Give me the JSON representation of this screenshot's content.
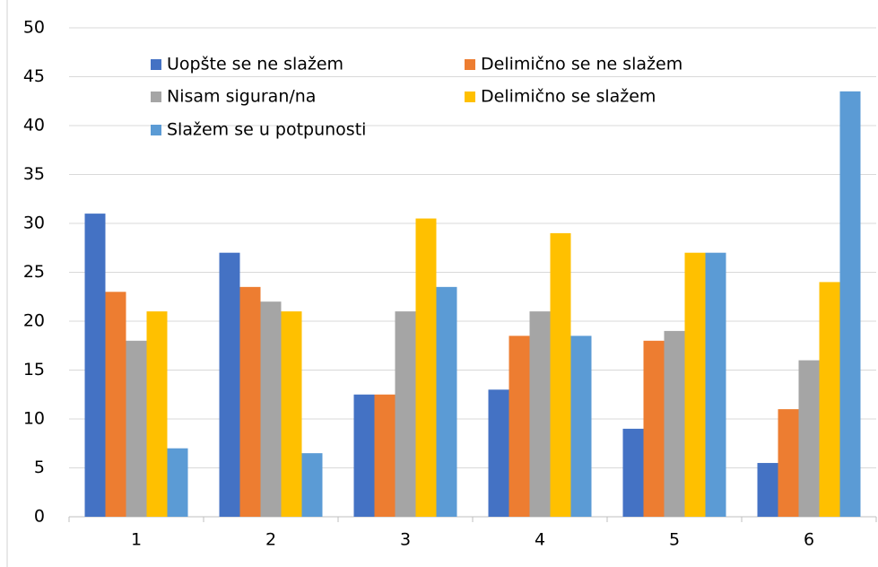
{
  "chart_data": {
    "type": "bar",
    "categories": [
      "1",
      "2",
      "3",
      "4",
      "5",
      "6"
    ],
    "series": [
      {
        "name": "Uopšte se ne slažem",
        "color": "#4472c4",
        "values": [
          31,
          27,
          12.5,
          13,
          9,
          5.5
        ]
      },
      {
        "name": "Delimično se ne slažem",
        "color": "#ed7d31",
        "values": [
          23,
          23.5,
          12.5,
          18.5,
          18,
          11
        ]
      },
      {
        "name": "Nisam siguran/na",
        "color": "#a5a5a5",
        "values": [
          18,
          22,
          21,
          21,
          19,
          16
        ]
      },
      {
        "name": "Delimično se slažem",
        "color": "#ffc000",
        "values": [
          21,
          21,
          30.5,
          29,
          27,
          24
        ]
      },
      {
        "name": "Slažem se u potpunosti",
        "color": "#5b9bd5",
        "values": [
          7,
          6.5,
          23.5,
          18.5,
          27,
          43.5
        ]
      }
    ],
    "ylim": [
      0,
      50
    ],
    "yticks": [
      0,
      5,
      10,
      15,
      20,
      25,
      30,
      35,
      40,
      45,
      50
    ],
    "grid": true
  }
}
